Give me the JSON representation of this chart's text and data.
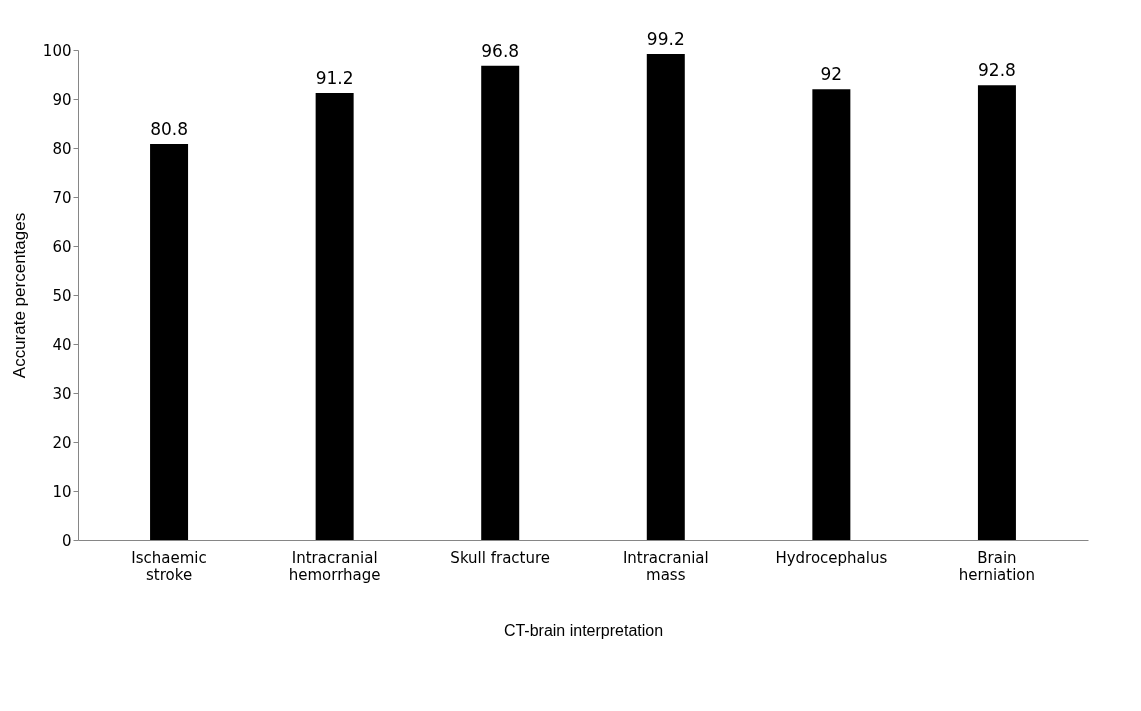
{
  "chart_data": {
    "type": "bar",
    "xlabel": "CT-brain interpretation",
    "ylabel": "Accurate percentages",
    "categories": [
      "Ischaemic stroke",
      "Intracranial hemorrhage",
      "Skull fracture",
      "Intracranial mass",
      "Hydrocephalus",
      "Brain herniation"
    ],
    "values": [
      80.8,
      91.2,
      96.8,
      99.2,
      92,
      92.8
    ],
    "color": "#000000",
    "ylim": [
      0,
      100
    ],
    "yticks": [
      0,
      10,
      20,
      30,
      40,
      50,
      60,
      70,
      80,
      90,
      100
    ],
    "grid": false,
    "data_labels": true
  }
}
